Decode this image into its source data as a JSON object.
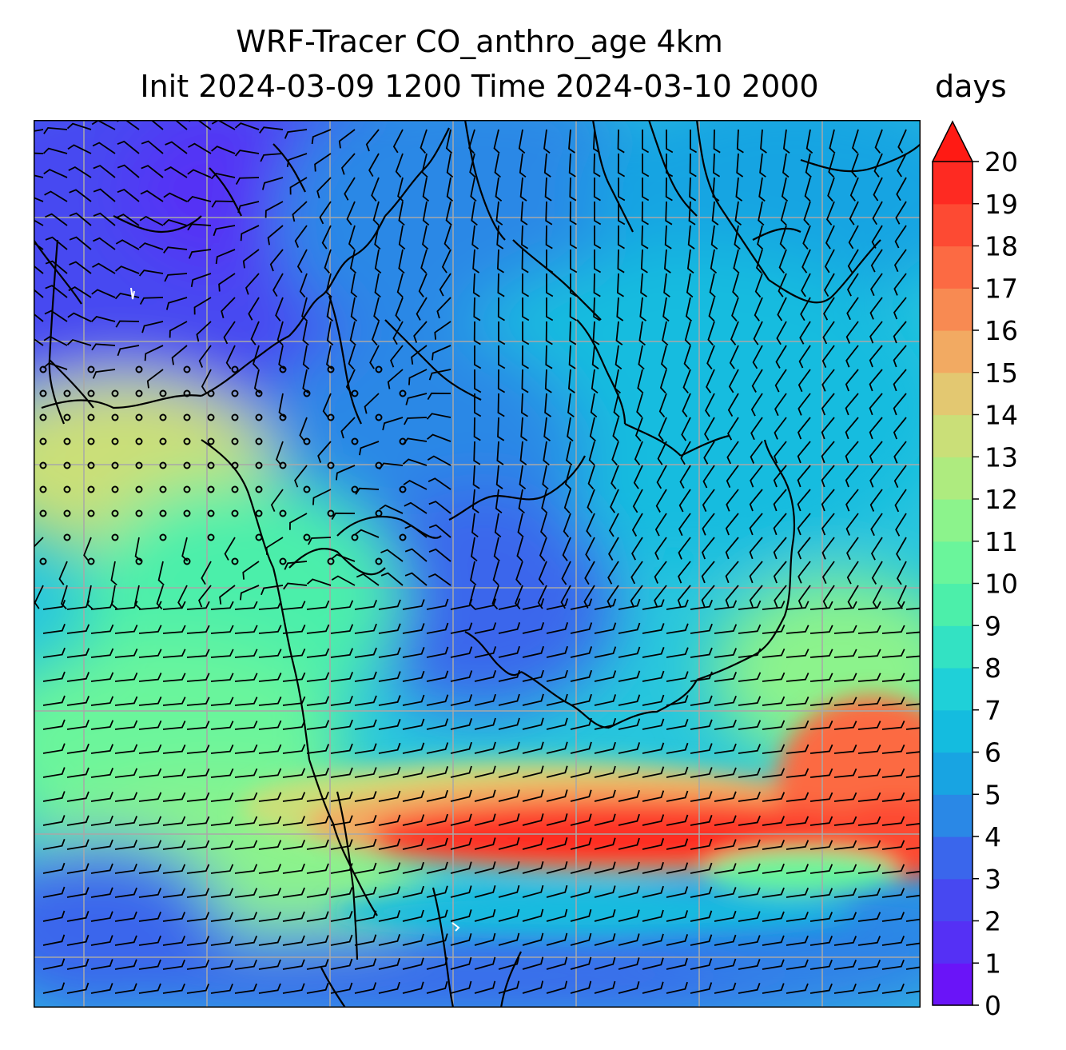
{
  "title": {
    "line1": "WRF-Tracer CO_anthro_age 4km",
    "line2": "Init 2024-03-09 1200 Time 2024-03-10 2000"
  },
  "colorbar": {
    "units": "days",
    "min": 0,
    "max": 20,
    "extend": "max",
    "ticks": [
      "0",
      "1",
      "2",
      "3",
      "4",
      "5",
      "6",
      "7",
      "8",
      "9",
      "10",
      "11",
      "12",
      "13",
      "14",
      "15",
      "16",
      "17",
      "18",
      "19",
      "20"
    ],
    "colors": [
      "#6a14f8",
      "#5530f5",
      "#4748f1",
      "#3a66ec",
      "#2a88e6",
      "#18a4e2",
      "#14bcdf",
      "#1fd0d8",
      "#33e2c3",
      "#4cefaa",
      "#6af59b",
      "#8cf38c",
      "#aeeb7f",
      "#cadf78",
      "#e3c871",
      "#f2aa62",
      "#f88a52",
      "#fc6a43",
      "#fd4a33",
      "#fe2a22"
    ],
    "over_color": "#ff1a14"
  },
  "map": {
    "gridline_color": "#a8a8a8",
    "coastline_color": "#000000",
    "barb_color": "#000000"
  }
}
